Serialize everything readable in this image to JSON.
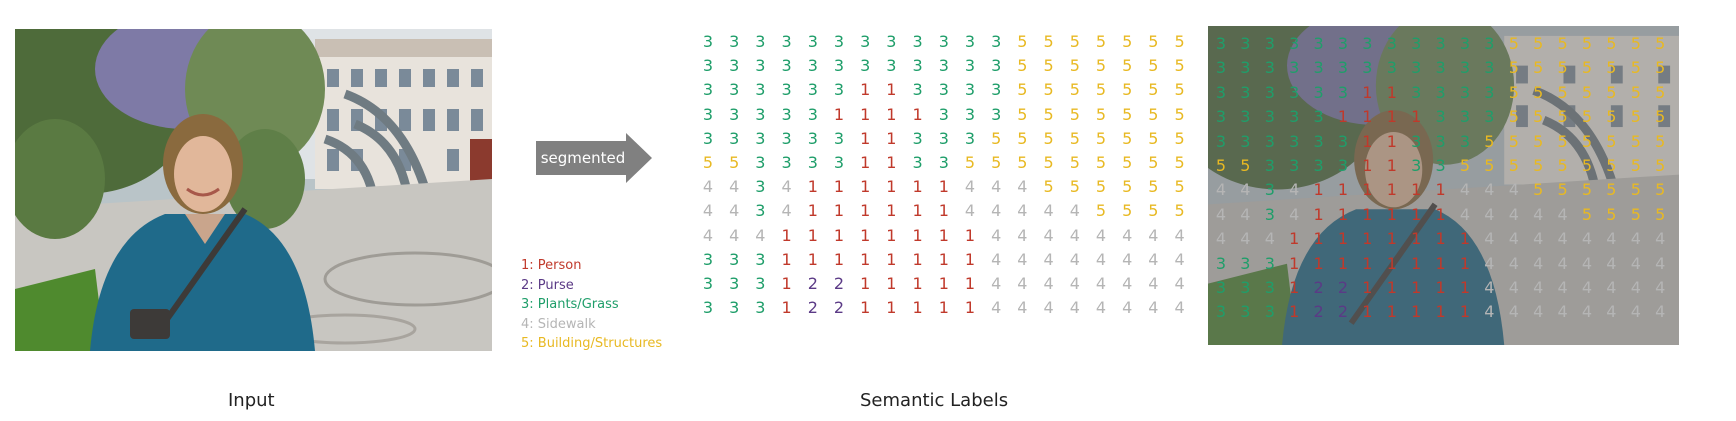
{
  "arrow": {
    "label": "segmented",
    "color": "#808080"
  },
  "legend": [
    {
      "label": "1: Person",
      "color": "#c0392b"
    },
    {
      "label": "2: Purse",
      "color": "#5b3a86"
    },
    {
      "label": "3: Plants/Grass",
      "color": "#1f9e6a"
    },
    {
      "label": "4: Sidewalk",
      "color": "#b5b5b5"
    },
    {
      "label": "5: Building/Structures",
      "color": "#e8b923"
    }
  ],
  "class_colors": {
    "1": "#c0392b",
    "2": "#5b3a86",
    "3": "#1f9e6a",
    "4": "#b5b5b5",
    "5": "#e8b923"
  },
  "labels_grid": [
    "3333333333335555555",
    "3333333333335555555",
    "3333331133335555555",
    "3333311113335555555",
    "3333331133355555555",
    "5533331133555555555",
    "4434111111444555555",
    "4434111111444445555",
    "4441111111144444444",
    "3331111111144444444",
    "3331221111144444444",
    "3331221111144444444"
  ],
  "captions": {
    "input": "Input",
    "labels": "Semantic Labels"
  }
}
